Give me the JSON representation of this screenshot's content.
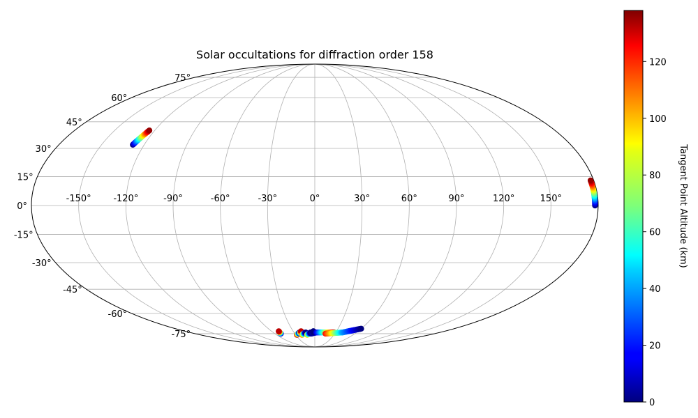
{
  "chart_data": {
    "type": "scatter",
    "projection": "mollweide",
    "title": "Solar occultations for diffraction order 158",
    "grid": true,
    "xlim": [
      -180,
      180
    ],
    "ylim": [
      -90,
      90
    ],
    "lon_ticks": [
      "-150°",
      "-120°",
      "-90°",
      "-60°",
      "-30°",
      "0°",
      "30°",
      "60°",
      "90°",
      "120°",
      "150°"
    ],
    "lon_tick_values": [
      -150,
      -120,
      -90,
      -60,
      -30,
      0,
      30,
      60,
      90,
      120,
      150
    ],
    "lat_ticks": [
      "-75°",
      "-60°",
      "-45°",
      "-30°",
      "-15°",
      "0°",
      "15°",
      "30°",
      "45°",
      "60°",
      "75°"
    ],
    "lat_tick_values": [
      -75,
      -60,
      -45,
      -30,
      -15,
      0,
      15,
      30,
      45,
      60,
      75
    ],
    "colorbar": {
      "label": "Tangent Point Altitude (km)",
      "ticks": [
        "0",
        "20",
        "40",
        "60",
        "80",
        "100",
        "120"
      ],
      "tick_values": [
        0,
        20,
        40,
        60,
        80,
        100,
        120
      ],
      "range": [
        0,
        138
      ],
      "colormap": "jet"
    },
    "series": [
      {
        "lon_start": -128,
        "lat_start": 32,
        "lon_end": -124,
        "lat_end": 40,
        "alt_start": 0,
        "alt_end": 135
      },
      {
        "lon_start": 178,
        "lat_start": 0,
        "lon_end": 178,
        "lat_end": 13,
        "alt_start": 0,
        "alt_end": 135
      },
      {
        "lon_start": -51,
        "lat_start": -75,
        "lon_end": -50,
        "lat_end": -73,
        "alt_start": 0,
        "alt_end": 130
      },
      {
        "lon_start": -28,
        "lat_start": -76,
        "lon_end": -22,
        "lat_end": -74,
        "alt_start": 135,
        "alt_end": 0
      },
      {
        "lon_start": -23,
        "lat_start": -75,
        "lon_end": -19,
        "lat_end": -73,
        "alt_start": 0,
        "alt_end": 130
      },
      {
        "lon_start": -20,
        "lat_start": -76,
        "lon_end": -13,
        "lat_end": -74,
        "alt_start": 110,
        "alt_end": 0
      },
      {
        "lon_start": -12,
        "lat_start": -76,
        "lon_end": -6,
        "lat_end": -74,
        "alt_start": 95,
        "alt_end": 0
      },
      {
        "lon_start": -6,
        "lat_start": -75,
        "lon_end": 2,
        "lat_end": -74,
        "alt_start": 0,
        "alt_end": 10
      },
      {
        "lon_start": -2,
        "lat_start": -74,
        "lon_end": -2,
        "lat_end": -73,
        "alt_start": 0,
        "alt_end": 0
      },
      {
        "lon_start": 2,
        "lat_start": -74,
        "lon_end": 28,
        "lat_end": -74,
        "alt_start": 10,
        "alt_end": 130
      },
      {
        "lon_start": 16,
        "lat_start": -75,
        "lon_end": 40,
        "lat_end": -74,
        "alt_start": 120,
        "alt_end": 40
      },
      {
        "lon_start": 40,
        "lat_start": -74,
        "lon_end": 60,
        "lat_end": -71,
        "alt_start": 40,
        "alt_end": 0
      }
    ]
  }
}
